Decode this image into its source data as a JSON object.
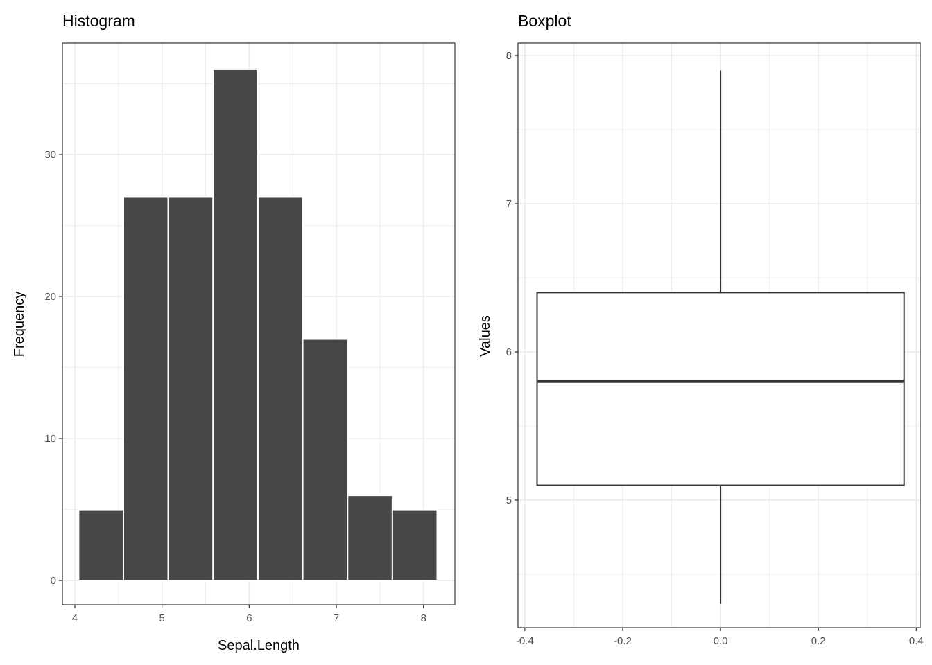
{
  "chart_data": [
    {
      "type": "bar",
      "title": "Histogram",
      "xlabel": "Sepal.Length",
      "ylabel": "Frequency",
      "bin_edges": [
        4.043,
        4.557,
        5.071,
        5.586,
        6.1,
        6.614,
        7.129,
        7.643,
        8.157
      ],
      "values": [
        5,
        27,
        27,
        36,
        27,
        17,
        6,
        5
      ],
      "xlim": [
        3.857,
        8.36
      ],
      "ylim": [
        -1.7,
        37.85
      ],
      "xticks": [
        4,
        5,
        6,
        7,
        8
      ],
      "xtick_labels": [
        "4",
        "5",
        "6",
        "7",
        "8"
      ],
      "yticks": [
        0,
        10,
        20,
        30
      ],
      "ytick_labels": [
        "0",
        "10",
        "20",
        "30"
      ],
      "grid": true,
      "bar_color": "#474747"
    },
    {
      "type": "boxplot",
      "title": "Boxplot",
      "xlabel": "",
      "ylabel": "Values",
      "box": {
        "x_center": 0,
        "half_width": 0.375,
        "whisker_low": 4.3,
        "q1": 5.1,
        "median": 5.8,
        "q3": 6.4,
        "whisker_high": 7.9
      },
      "xlim": [
        -0.414,
        0.408
      ],
      "ylim": [
        4.14,
        8.084
      ],
      "xticks": [
        -0.4,
        -0.2,
        0.0,
        0.2,
        0.4
      ],
      "xtick_labels": [
        "-0.4",
        "-0.2",
        "0.0",
        "0.2",
        "0.4"
      ],
      "yticks": [
        5,
        6,
        7,
        8
      ],
      "ytick_labels": [
        "5",
        "6",
        "7",
        "8"
      ],
      "grid": true
    }
  ]
}
